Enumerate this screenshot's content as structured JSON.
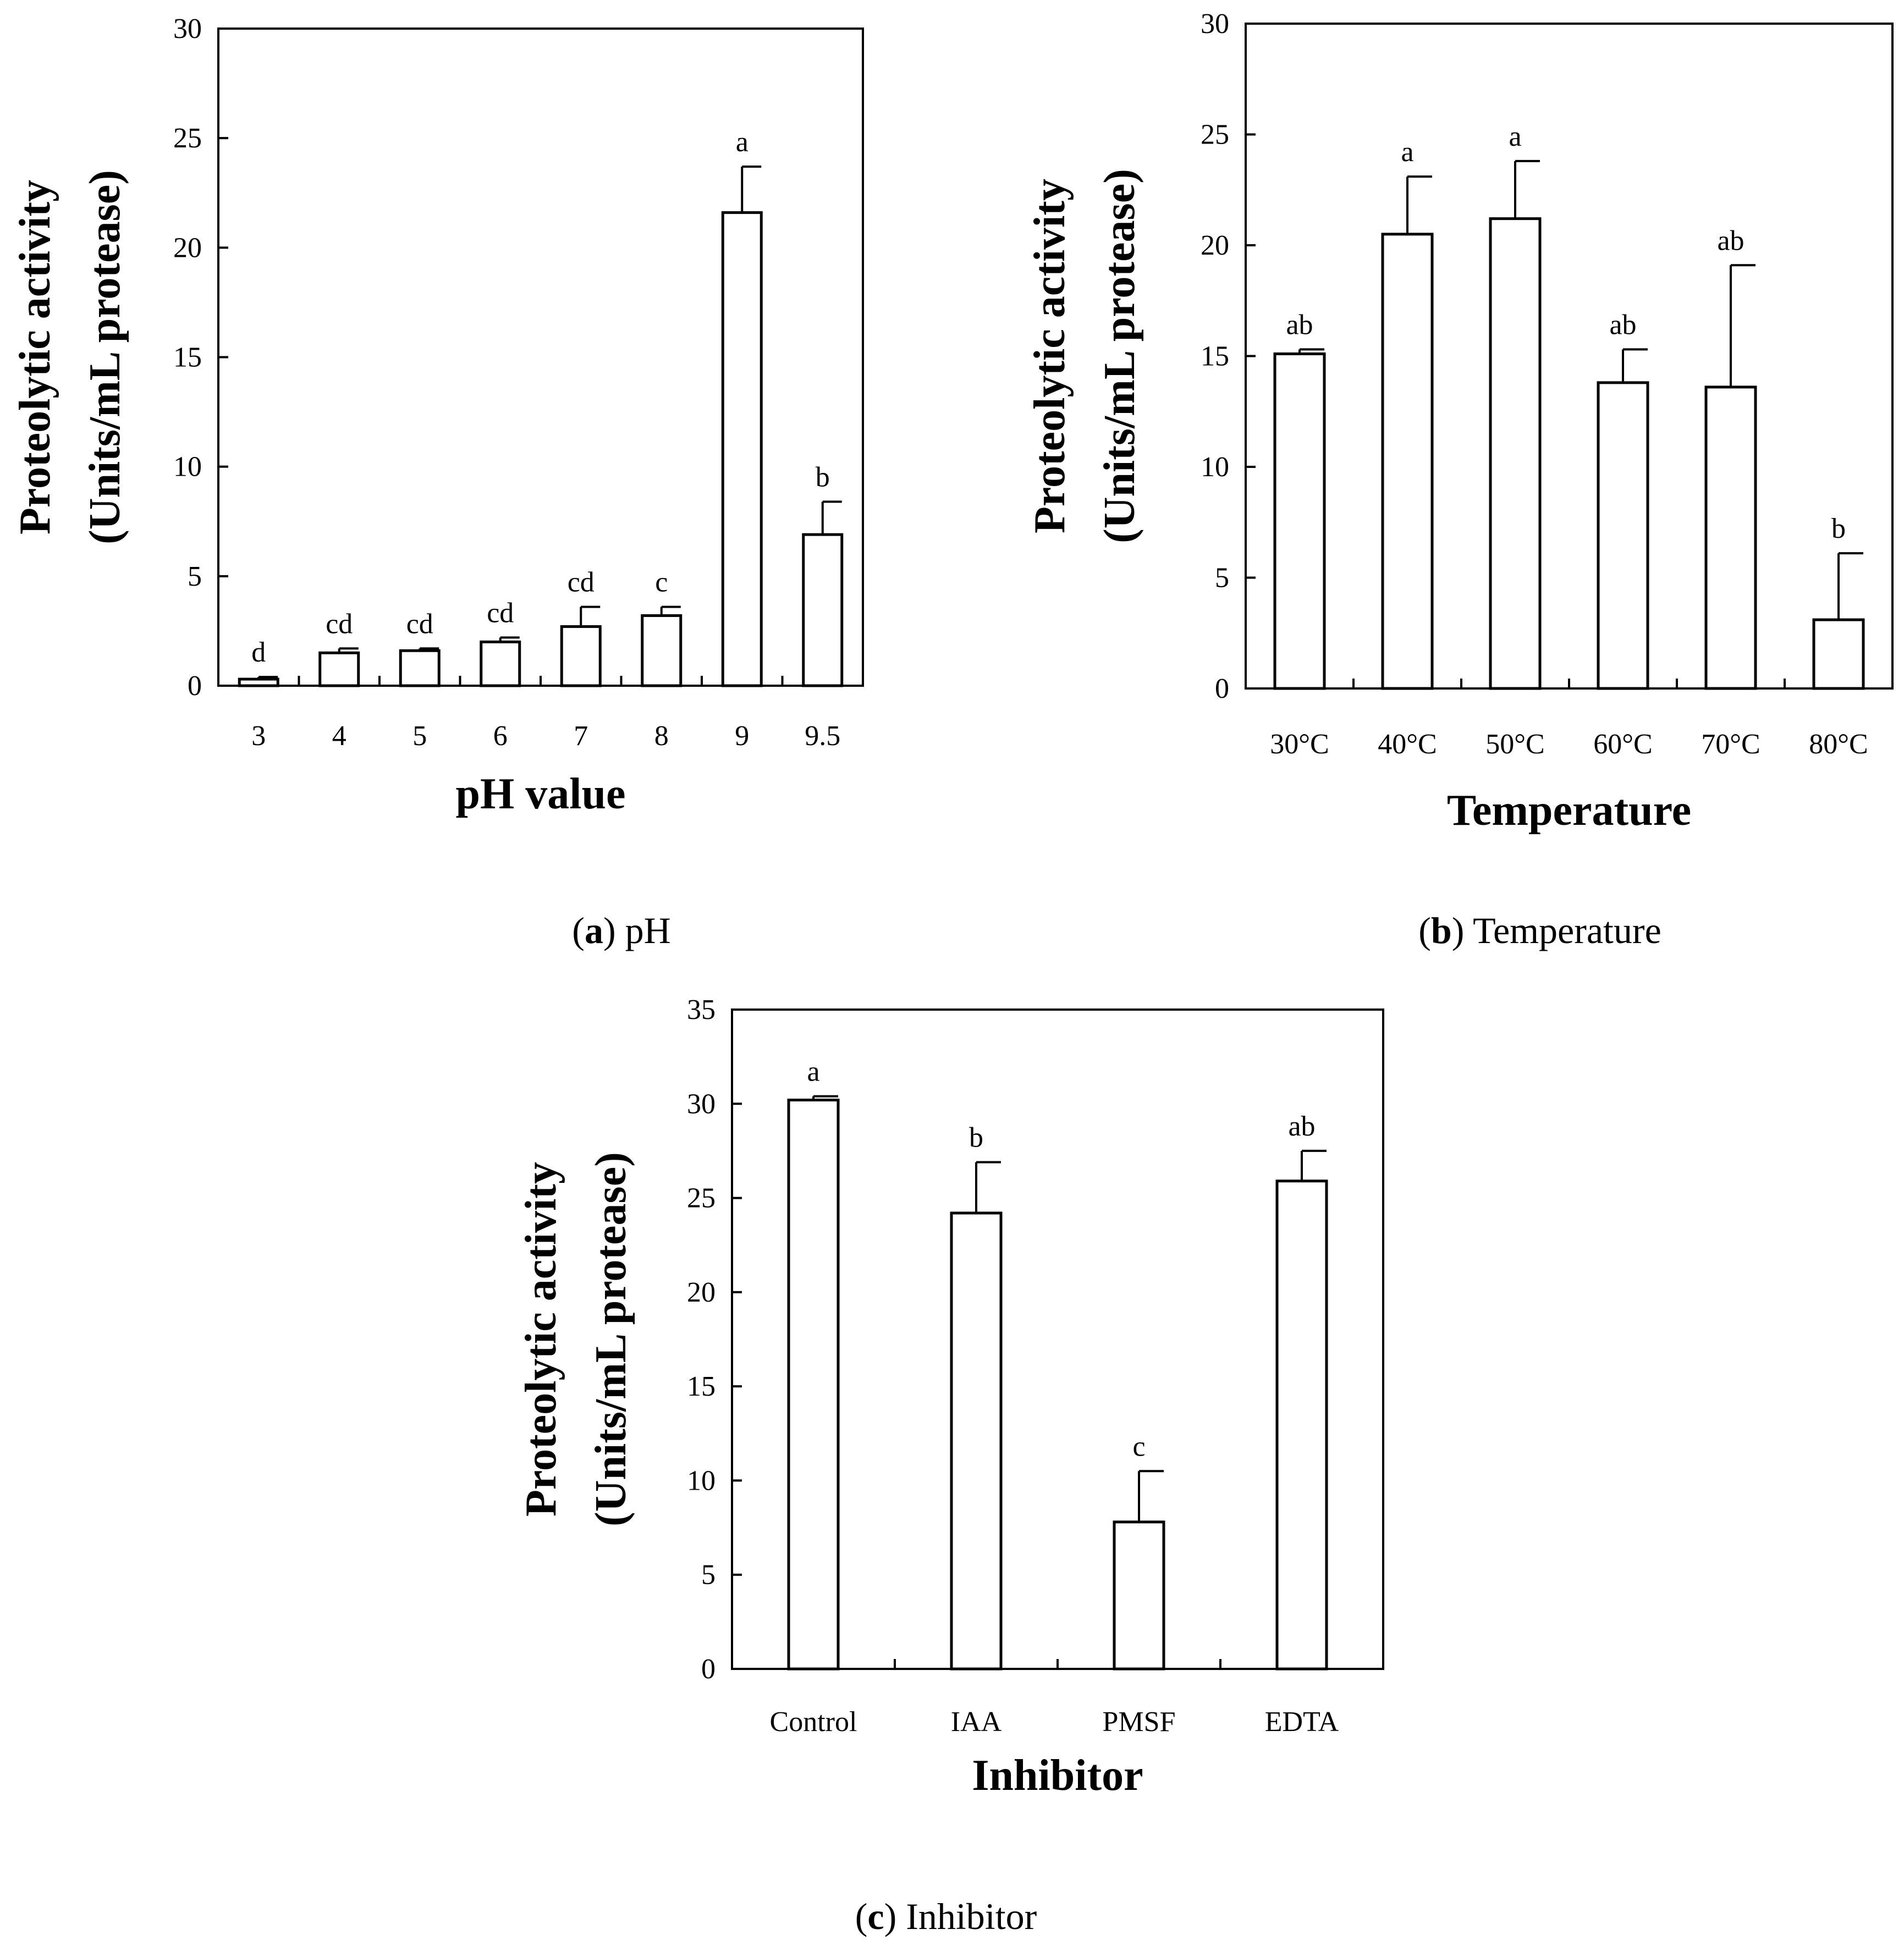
{
  "chart_data": [
    {
      "type": "bar",
      "panel_id": "a",
      "caption_label": "a",
      "caption_text": "pH",
      "xlabel": "pH value",
      "ylabel_line1": "Proteolytic activity",
      "ylabel_line2": "(Units/mL protease)",
      "ylim": [
        0,
        30
      ],
      "yticks": [
        0,
        5,
        10,
        15,
        20,
        25,
        30
      ],
      "categories": [
        "3",
        "4",
        "5",
        "6",
        "7",
        "8",
        "9",
        "9.5"
      ],
      "values": [
        0.3,
        1.5,
        1.6,
        2.0,
        2.7,
        3.2,
        21.6,
        6.9
      ],
      "errors": [
        0.1,
        0.2,
        0.1,
        0.2,
        0.9,
        0.4,
        2.1,
        1.5
      ],
      "significance": [
        "d",
        "cd",
        "cd",
        "cd",
        "cd",
        "c",
        "a",
        "b"
      ]
    },
    {
      "type": "bar",
      "panel_id": "b",
      "caption_label": "b",
      "caption_text": "Temperature",
      "xlabel": "Temperature",
      "ylabel_line1": "Proteolytic activity",
      "ylabel_line2": "(Units/mL protease)",
      "ylim": [
        0,
        30
      ],
      "yticks": [
        0,
        5,
        10,
        15,
        20,
        25,
        30
      ],
      "categories": [
        "30°C",
        "40°C",
        "50°C",
        "60°C",
        "70°C",
        "80°C"
      ],
      "values": [
        15.1,
        20.5,
        21.2,
        13.8,
        13.6,
        3.1
      ],
      "errors": [
        0.2,
        2.6,
        2.6,
        1.5,
        5.5,
        3.0
      ],
      "significance": [
        "ab",
        "a",
        "a",
        "ab",
        "ab",
        "b"
      ]
    },
    {
      "type": "bar",
      "panel_id": "c",
      "caption_label": "c",
      "caption_text": "Inhibitor",
      "xlabel": "Inhibitor",
      "ylabel_line1": "Proteolytic activity",
      "ylabel_line2": "(Units/mL protease)",
      "ylim": [
        0,
        35
      ],
      "yticks": [
        0,
        5,
        10,
        15,
        20,
        25,
        30,
        35
      ],
      "categories": [
        "Control",
        "IAA",
        "PMSF",
        "EDTA"
      ],
      "values": [
        30.2,
        24.2,
        7.8,
        25.9
      ],
      "errors": [
        0.2,
        2.7,
        2.7,
        1.6
      ],
      "significance": [
        "a",
        "b",
        "c",
        "ab"
      ]
    }
  ]
}
